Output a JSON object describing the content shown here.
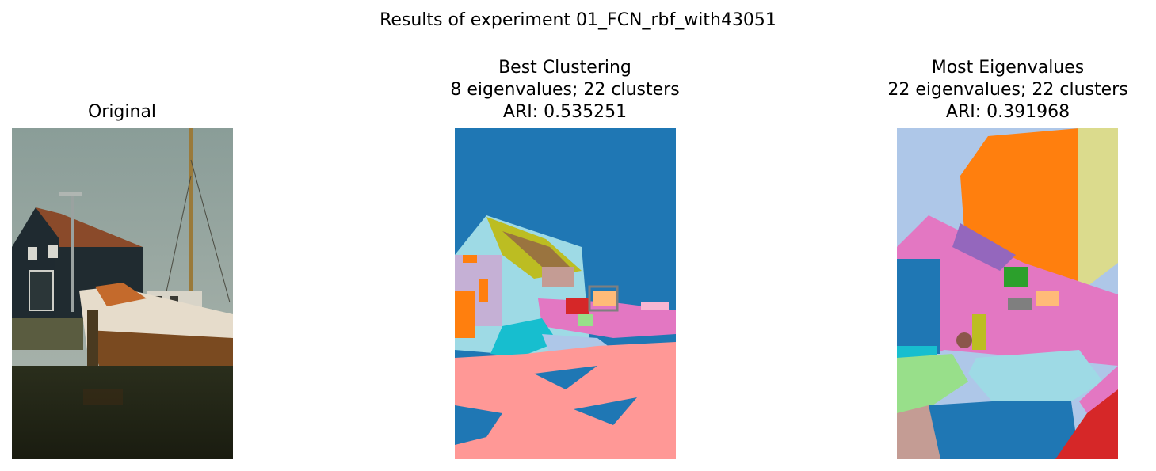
{
  "figure": {
    "suptitle": "Results of experiment 01_FCN_rbf_with43051",
    "panels": [
      {
        "title_lines": [
          "Original"
        ],
        "kind": "photo"
      },
      {
        "title_lines": [
          "Best Clustering",
          "8 eigenvalues; 22 clusters",
          "ARI: 0.535251"
        ],
        "kind": "segmentation"
      },
      {
        "title_lines": [
          "Most Eigenvalues",
          "22 eigenvalues; 22 clusters",
          "ARI: 0.391968"
        ],
        "kind": "segmentation"
      }
    ]
  },
  "colors": {
    "sky_photo": "#93a3a0",
    "seg_blue": "#1f77b4",
    "seg_orange": "#ff7f0e",
    "seg_pink": "#ff9896",
    "seg_lightblue": "#9edae5",
    "seg_magenta": "#e377c2",
    "seg_olive": "#bcbd22",
    "seg_lavender": "#c5b0d5",
    "seg_cyan": "#17becf",
    "seg_red": "#d62728",
    "seg_green": "#2ca02c",
    "seg_lightgreen": "#98df8a",
    "seg_periwinkle": "#aec7e8",
    "seg_khaki": "#dbdb8d",
    "seg_purple": "#9467bd",
    "seg_brown": "#8c564b",
    "seg_tan": "#c49c94",
    "seg_peach": "#ffbb78",
    "seg_gray": "#7f7f7f"
  }
}
